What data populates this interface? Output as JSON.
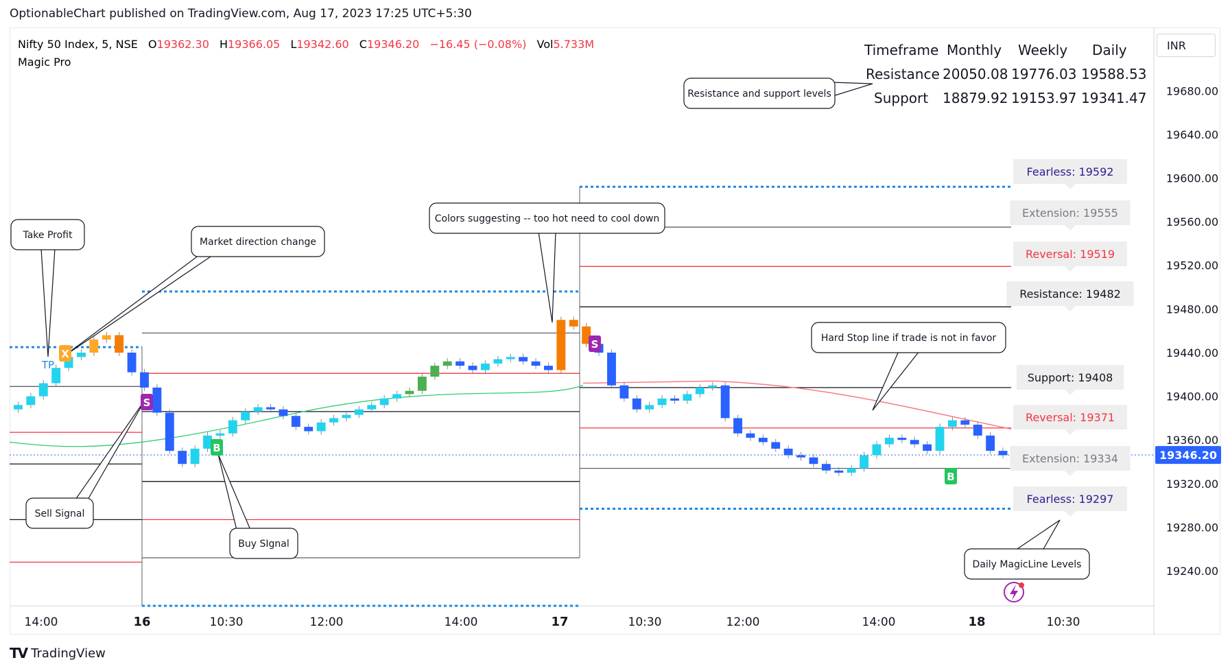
{
  "header": {
    "published": "OptionableChart published on TradingView.com, Aug 17, 2023 17:25 UTC+5:30",
    "symbol": "Nifty 50 Index, 5, NSE",
    "o_label": "O",
    "o": "19362.30",
    "h_label": "H",
    "h": "19366.05",
    "l_label": "L",
    "l": "19342.60",
    "c_label": "C",
    "c": "19346.20",
    "change": "−16.45 (−0.08%)",
    "vol_label": "Vol",
    "vol": "5.733M",
    "indicator": "Magic Pro"
  },
  "currency": "INR",
  "footer": {
    "logo": "TV",
    "brand": "TradingView"
  },
  "levels_table": {
    "headers": [
      "Timeframe",
      "Monthly",
      "Weekly",
      "Daily"
    ],
    "rows": [
      [
        "Resistance",
        "20050.08",
        "19776.03",
        "19588.53"
      ],
      [
        "Support",
        "18879.92",
        "19153.97",
        "19341.47"
      ]
    ]
  },
  "chart_data": {
    "type": "line",
    "title": "",
    "ylim": [
      19208,
      19738
    ],
    "y_ticks": [
      19240,
      19280,
      19320,
      19360,
      19400,
      19440,
      19480,
      19520,
      19560,
      19600,
      19640,
      19680
    ],
    "x_ticks": [
      "14:00",
      "16",
      "10:30",
      "12:00",
      "14:00",
      "17",
      "10:30",
      "12:00",
      "14:00",
      "18",
      "10:30"
    ],
    "x_ticks_bold": [
      false,
      true,
      false,
      false,
      false,
      true,
      false,
      false,
      false,
      true,
      false
    ],
    "last_price": "19346.20",
    "price_path": [
      19392,
      19400,
      19412,
      19426,
      19436,
      19440,
      19452,
      19456,
      19440,
      19422,
      19408,
      19385,
      19350,
      19338,
      19352,
      19364,
      19366,
      19378,
      19386,
      19390,
      19388,
      19382,
      19372,
      19368,
      19376,
      19380,
      19383,
      19388,
      19392,
      19398,
      19402,
      19405,
      19418,
      19428,
      19432,
      19428,
      19424,
      19430,
      19434,
      19436,
      19432,
      19428,
      19424,
      19470,
      19464,
      19448,
      19440,
      19410,
      19398,
      19388,
      19392,
      19398,
      19396,
      19402,
      19408,
      19410,
      19380,
      19366,
      19362,
      19358,
      19352,
      19346,
      19344,
      19338,
      19332,
      19330,
      19334,
      19346,
      19356,
      19362,
      19360,
      19356,
      19350,
      19372,
      19378,
      19374,
      19364,
      19350,
      19346
    ],
    "magicline_levels": {
      "fearless_high": "Fearless: 19592",
      "extension_high": "Extension: 19555",
      "reversal_high": "Reversal: 19519",
      "resistance": "Resistance: 19482",
      "support": "Support: 19408",
      "reversal_low": "Reversal: 19371",
      "extension_low": "Extension: 19334",
      "fearless_low": "Fearless: 19297"
    },
    "signals": {
      "tp": "TP",
      "x": "X",
      "sell": "S",
      "buy": "B"
    },
    "annotations": {
      "take_profit": "Take Profit",
      "market_direction": "Market direction change",
      "colors": "Colors suggesting -- too hot need to cool down",
      "res_sup": "Resistance and support levels",
      "hard_stop": "Hard Stop line if trade is not in favor",
      "sell_signal": "Sell Signal",
      "buy_signal": "Buy SIgnal",
      "daily_levels": "Daily MagicLine Levels"
    },
    "colors": {
      "up": "#22d3ee",
      "down": "#2962ff",
      "hot": "#f57c00",
      "warm": "#ffa726",
      "green": "#4caf50",
      "sell": "#9c27b0",
      "buy": "#22c55e",
      "reversal": "#f23645",
      "fearless": "#1e88e5",
      "fearless_text": "#311b92",
      "grey_line": "#5d606b",
      "trend_line": "#2ecc71",
      "hard_stop": "#f77c80",
      "price_axis_bg": "#2962ff"
    }
  }
}
